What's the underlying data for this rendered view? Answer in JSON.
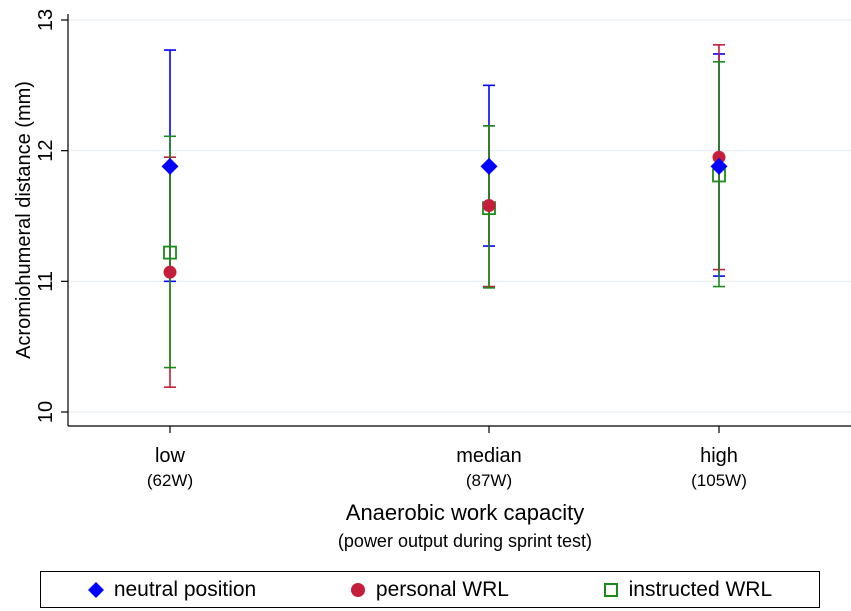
{
  "chart_data": {
    "type": "scatter",
    "xlabel": "Anaerobic work capacity",
    "xlabel_sub": "(power output during sprint test)",
    "ylabel": "Acromiohumeral distance (mm)",
    "ylim": [
      10,
      13
    ],
    "yticks": [
      10,
      11,
      12,
      13
    ],
    "grid": true,
    "legend_position": "bottom",
    "categories": [
      {
        "label": "low",
        "sub": "(62W)",
        "x": 62
      },
      {
        "label": "median",
        "sub": "(87W)",
        "x": 87
      },
      {
        "label": "high",
        "sub": "(105W)",
        "x": 105
      }
    ],
    "xlim": [
      55,
      111
    ],
    "series": [
      {
        "name": "neutral position",
        "color": "#0000FF",
        "marker": "diamond",
        "mean": [
          11.88,
          11.88,
          11.88
        ],
        "lower": [
          11.0,
          11.27,
          11.04
        ],
        "upper": [
          12.77,
          12.5,
          12.74
        ]
      },
      {
        "name": "personal WRL",
        "color": "#C41E3A",
        "marker": "circle",
        "mean": [
          11.07,
          11.58,
          11.95
        ],
        "lower": [
          10.19,
          10.96,
          11.09
        ],
        "upper": [
          11.95,
          12.19,
          12.81
        ]
      },
      {
        "name": "instructed WRL",
        "color": "#1A8A1A",
        "marker": "hollow-square",
        "mean": [
          11.22,
          11.56,
          11.81
        ],
        "lower": [
          10.34,
          10.95,
          10.96
        ],
        "upper": [
          12.11,
          12.19,
          12.68
        ]
      }
    ]
  }
}
